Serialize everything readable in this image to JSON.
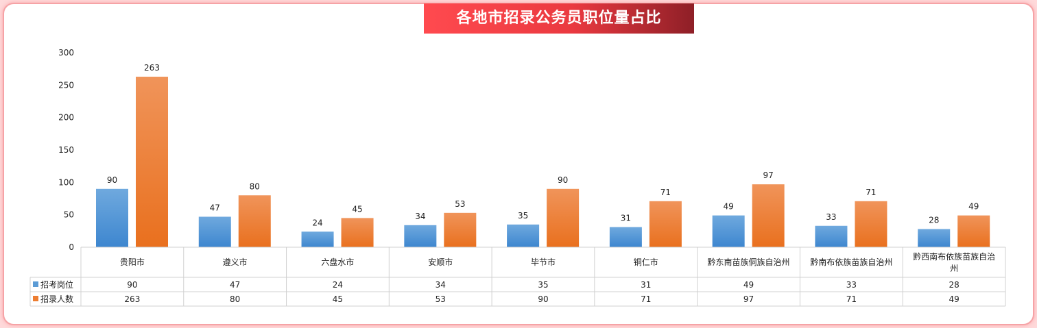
{
  "title": "各地市招录公务员职位量占比",
  "chart_data": {
    "type": "bar",
    "title": "各地市招录公务员职位量占比",
    "categories": [
      "贵阳市",
      "遵义市",
      "六盘水市",
      "安顺市",
      "毕节市",
      "铜仁市",
      "黔东南苗族侗族自治州",
      "黔南布依族苗族自治州",
      "黔西南布依族苗族自治州"
    ],
    "series": [
      {
        "name": "招考岗位",
        "values": [
          90,
          47,
          24,
          34,
          35,
          31,
          49,
          33,
          28
        ],
        "color": "#5b9bd5"
      },
      {
        "name": "招录人数",
        "values": [
          263,
          80,
          45,
          53,
          90,
          71,
          97,
          71,
          49
        ],
        "color": "#ed7d31"
      }
    ],
    "ylim": [
      0,
      300
    ],
    "yticks": [
      0,
      50,
      100,
      150,
      200,
      250,
      300
    ],
    "grid": false,
    "legend": "data-table"
  }
}
